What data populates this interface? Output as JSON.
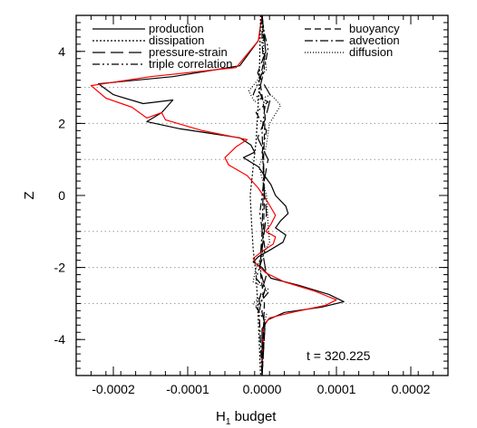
{
  "chart_data": {
    "type": "line",
    "xlabel": "H",
    "xlabel_sub": "1",
    "xlabel_rest": " budget",
    "ylabel": "Z",
    "xlim": [
      -0.00025,
      0.00025
    ],
    "ylim": [
      -5,
      5
    ],
    "x_ticks": [
      -0.0002,
      -0.0001,
      0.0,
      0.0001,
      0.0002
    ],
    "x_tick_labels": [
      "-0.0002",
      "-0.0001",
      "0.0000",
      "0.0001",
      "0.0002"
    ],
    "y_ticks": [
      -4,
      -2,
      0,
      2,
      4
    ],
    "y_tick_labels": [
      "-4",
      "-2",
      "0",
      "2",
      "4"
    ],
    "reference_lines_z": [
      -3,
      -2,
      -1,
      1,
      2,
      3
    ],
    "annotation": "t = 320.225",
    "legend": {
      "placement": "top",
      "left": [
        "production",
        "dissipation",
        "pressure-strain",
        "triple correlation"
      ],
      "right": [
        "buoyancy",
        "advection",
        "diffusion"
      ]
    },
    "series": [
      {
        "name": "production",
        "color": "#000000",
        "dash": "none",
        "points": [
          [
            0.0,
            5.0
          ],
          [
            -5e-06,
            4.3
          ],
          [
            -3e-05,
            3.6
          ],
          [
            -0.00012,
            3.3
          ],
          [
            -0.00022,
            3.1
          ],
          [
            -0.0002,
            2.8
          ],
          [
            -0.00016,
            2.55
          ],
          [
            -0.00012,
            2.65
          ],
          [
            -0.000135,
            2.3
          ],
          [
            -0.000155,
            2.05
          ],
          [
            -0.00011,
            1.85
          ],
          [
            -3e-05,
            1.6
          ],
          [
            -1.5e-05,
            1.4
          ],
          [
            -1e-05,
            1.2
          ],
          [
            -2.5e-05,
            1.05
          ],
          [
            -5e-06,
            0.8
          ],
          [
            5e-06,
            0.5
          ],
          [
            1.2e-05,
            0.3
          ],
          [
            1.8e-05,
            0.0
          ],
          [
            3.2e-05,
            -0.3
          ],
          [
            3.5e-05,
            -0.5
          ],
          [
            2.5e-05,
            -0.7
          ],
          [
            1.8e-05,
            -0.9
          ],
          [
            3.2e-05,
            -1.1
          ],
          [
            2.8e-05,
            -1.3
          ],
          [
            1.2e-05,
            -1.5
          ],
          [
            -5e-06,
            -1.7
          ],
          [
            -1.2e-05,
            -1.85
          ],
          [
            0.0,
            -2.0
          ],
          [
            1.2e-05,
            -2.3
          ],
          [
            5e-05,
            -2.5
          ],
          [
            9e-05,
            -2.75
          ],
          [
            0.00011,
            -2.95
          ],
          [
            8e-05,
            -3.1
          ],
          [
            3e-05,
            -3.25
          ],
          [
            8e-06,
            -3.45
          ],
          [
            0.0,
            -3.7
          ],
          [
            0.0,
            -5.0
          ]
        ]
      },
      {
        "name": "",
        "color": "#ff0000",
        "dash": "none",
        "points": [
          [
            0.0,
            5.0
          ],
          [
            -5e-06,
            4.3
          ],
          [
            -3.5e-05,
            3.55
          ],
          [
            -0.00015,
            3.3
          ],
          [
            -0.00023,
            3.05
          ],
          [
            -0.00021,
            2.7
          ],
          [
            -0.000175,
            2.45
          ],
          [
            -0.000155,
            2.15
          ],
          [
            -0.000135,
            2.3
          ],
          [
            -0.00013,
            2.1
          ],
          [
            -8e-05,
            1.8
          ],
          [
            -2e-05,
            1.55
          ],
          [
            -3.5e-05,
            1.35
          ],
          [
            -5e-05,
            1.05
          ],
          [
            -4.5e-05,
            0.85
          ],
          [
            -2e-05,
            0.55
          ],
          [
            -5e-06,
            0.2
          ],
          [
            8e-06,
            -0.2
          ],
          [
            1.8e-05,
            -0.55
          ],
          [
            1.2e-05,
            -0.8
          ],
          [
            5e-06,
            -1.0
          ],
          [
            1.8e-05,
            -1.15
          ],
          [
            1.5e-05,
            -1.35
          ],
          [
            0.0,
            -1.55
          ],
          [
            -1.2e-05,
            -1.75
          ],
          [
            -8e-06,
            -1.9
          ],
          [
            5e-06,
            -2.15
          ],
          [
            3e-05,
            -2.4
          ],
          [
            7e-05,
            -2.65
          ],
          [
            0.0001,
            -2.9
          ],
          [
            8.5e-05,
            -3.05
          ],
          [
            4e-05,
            -3.25
          ],
          [
            1e-05,
            -3.4
          ],
          [
            2e-06,
            -3.6
          ],
          [
            0.0,
            -5.0
          ]
        ]
      },
      {
        "name": "dissipation",
        "color": "#000000",
        "dash": "2,2",
        "points": [
          [
            -2e-06,
            5.0
          ],
          [
            -4e-06,
            3.0
          ],
          [
            -8e-06,
            1.5
          ],
          [
            -1.2e-05,
            0.8
          ],
          [
            -1.6e-05,
            0.0
          ],
          [
            -1.4e-05,
            -0.8
          ],
          [
            -1.2e-05,
            -1.5
          ],
          [
            -8e-06,
            -2.2
          ],
          [
            -6e-06,
            -3.0
          ],
          [
            -2e-06,
            -5.0
          ]
        ]
      },
      {
        "name": "pressure-strain",
        "color": "#000000",
        "dash": "14,6",
        "points": [
          [
            0.0,
            5.0
          ],
          [
            2e-06,
            4.6
          ],
          [
            5e-06,
            4.0
          ],
          [
            -6e-06,
            3.4
          ],
          [
            1.2e-05,
            2.75
          ],
          [
            4e-06,
            2.1
          ],
          [
            -6e-06,
            1.6
          ],
          [
            8e-06,
            1.0
          ],
          [
            2e-06,
            0.3
          ],
          [
            6e-06,
            -0.5
          ],
          [
            0.0,
            -1.5
          ],
          [
            6e-06,
            -2.2
          ],
          [
            -4e-06,
            -2.9
          ],
          [
            4e-06,
            -3.6
          ],
          [
            0.0,
            -5.0
          ]
        ]
      },
      {
        "name": "triple correlation",
        "color": "#000000",
        "dash": "8,3,2,3,2,3",
        "points": [
          [
            0.0,
            5.0
          ],
          [
            3e-06,
            4.5
          ],
          [
            8e-06,
            4.1
          ],
          [
            4e-06,
            3.6
          ],
          [
            -1.2e-05,
            2.8
          ],
          [
            8e-06,
            2.6
          ],
          [
            -8e-06,
            2.3
          ],
          [
            6e-06,
            1.8
          ],
          [
            0.0,
            1.2
          ],
          [
            3e-06,
            0.5
          ],
          [
            -3e-06,
            -0.5
          ],
          [
            4e-06,
            -1.5
          ],
          [
            -8e-06,
            -2.3
          ],
          [
            8e-06,
            -2.7
          ],
          [
            -8e-06,
            -3.1
          ],
          [
            4e-06,
            -3.5
          ],
          [
            0.0,
            -5.0
          ]
        ]
      },
      {
        "name": "buoyancy",
        "color": "#000000",
        "dash": "7,4",
        "points": [
          [
            0.0,
            5.0
          ],
          [
            2e-06,
            4.4
          ],
          [
            5e-06,
            4.0
          ],
          [
            -3e-06,
            3.2
          ],
          [
            4e-06,
            2.2
          ],
          [
            2e-06,
            1.0
          ],
          [
            3e-06,
            0.0
          ],
          [
            2e-06,
            -1.0
          ],
          [
            -3e-06,
            -2.0
          ],
          [
            3e-06,
            -3.0
          ],
          [
            0.0,
            -5.0
          ]
        ]
      },
      {
        "name": "advection",
        "color": "#000000",
        "dash": "9,3,2,3",
        "points": [
          [
            0.0,
            5.0
          ],
          [
            0.0,
            4.2
          ],
          [
            3e-06,
            3.5
          ],
          [
            -4e-06,
            2.9
          ],
          [
            4e-06,
            2.5
          ],
          [
            0.0,
            1.8
          ],
          [
            2e-06,
            0.5
          ],
          [
            0.0,
            -1.0
          ],
          [
            -3e-06,
            -2.0
          ],
          [
            4e-06,
            -2.6
          ],
          [
            -4e-06,
            -3.2
          ],
          [
            0.0,
            -5.0
          ]
        ]
      },
      {
        "name": "diffusion",
        "color": "#000000",
        "dash": "1,2",
        "points": [
          [
            0.0,
            5.0
          ],
          [
            2e-06,
            4.0
          ],
          [
            6e-06,
            3.5
          ],
          [
            -1.8e-05,
            2.9
          ],
          [
            -1e-05,
            2.6
          ],
          [
            1.2e-05,
            2.8
          ],
          [
            2.5e-05,
            2.5
          ],
          [
            1e-05,
            2.0
          ],
          [
            5e-06,
            1.3
          ],
          [
            -4e-06,
            0.8
          ],
          [
            6e-06,
            0.0
          ],
          [
            8e-06,
            -0.8
          ],
          [
            1e-05,
            -1.3
          ],
          [
            -8e-06,
            -2.0
          ],
          [
            -1.2e-05,
            -2.4
          ],
          [
            8e-06,
            -2.6
          ],
          [
            -1.2e-05,
            -3.0
          ],
          [
            6e-06,
            -3.3
          ],
          [
            0.0,
            -3.8
          ],
          [
            0.0,
            -5.0
          ]
        ]
      }
    ]
  }
}
